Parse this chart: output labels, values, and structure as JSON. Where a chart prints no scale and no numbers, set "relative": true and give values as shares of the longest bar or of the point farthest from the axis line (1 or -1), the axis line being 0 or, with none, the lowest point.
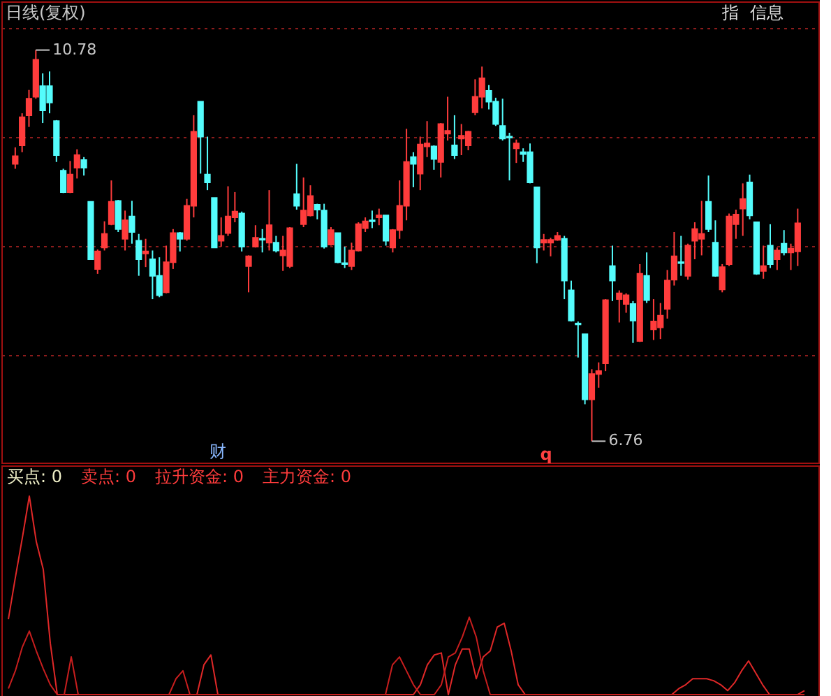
{
  "chart_data": [
    {
      "type": "candlestick",
      "title": "日线(复权)",
      "categories": [
        null,
        null,
        null,
        null,
        null,
        null,
        null,
        null,
        null,
        null,
        null,
        null,
        null,
        null,
        null,
        null,
        null,
        null,
        null,
        null,
        null,
        null,
        null,
        null,
        null,
        null,
        null,
        null,
        null,
        null,
        null,
        null,
        null,
        null,
        null,
        null,
        null,
        null,
        null,
        null,
        null,
        null,
        null,
        null,
        null,
        null,
        null,
        null,
        null,
        null,
        null,
        null,
        null,
        null,
        null,
        null,
        null,
        null,
        null,
        null,
        null,
        null,
        null,
        null,
        null,
        null,
        null,
        null,
        null,
        null,
        null,
        null,
        null,
        null,
        null,
        null,
        null,
        null,
        null,
        null,
        null,
        null,
        null,
        null,
        null,
        null,
        null,
        null,
        null,
        null,
        null,
        null,
        null,
        null,
        null,
        null,
        null,
        null,
        null,
        null,
        null,
        null,
        null,
        null,
        null,
        null,
        null,
        null,
        null,
        null,
        null,
        null,
        null,
        null,
        null
      ],
      "ohlc": [
        [
          9.61,
          9.78,
          9.56,
          9.69
        ],
        [
          9.8,
          10.13,
          9.73,
          10.09
        ],
        [
          10.11,
          10.37,
          9.99,
          10.28
        ],
        [
          10.3,
          10.78,
          10.28,
          10.68
        ],
        [
          10.41,
          10.54,
          10.03,
          10.16
        ],
        [
          10.41,
          10.56,
          10.13,
          10.24
        ],
        [
          10.05,
          10.06,
          9.63,
          9.7
        ],
        [
          9.54,
          9.56,
          9.31,
          9.32
        ],
        [
          9.32,
          9.64,
          9.31,
          9.5
        ],
        [
          9.57,
          9.76,
          9.46,
          9.7
        ],
        [
          9.65,
          9.68,
          9.49,
          9.57
        ],
        [
          9.22,
          9.22,
          8.63,
          8.63
        ],
        [
          8.53,
          8.73,
          8.48,
          8.71
        ],
        [
          8.75,
          9.02,
          8.72,
          8.89
        ],
        [
          8.99,
          9.44,
          8.98,
          9.22
        ],
        [
          9.23,
          9.24,
          8.91,
          8.94
        ],
        [
          8.84,
          9.13,
          8.72,
          9.03
        ],
        [
          9.07,
          9.23,
          8.79,
          8.91
        ],
        [
          8.82,
          8.89,
          8.46,
          8.63
        ],
        [
          8.69,
          8.84,
          8.55,
          8.71
        ],
        [
          8.63,
          8.72,
          8.22,
          8.46
        ],
        [
          8.46,
          8.65,
          8.24,
          8.26
        ],
        [
          8.29,
          8.77,
          8.28,
          8.6
        ],
        [
          8.6,
          8.94,
          8.53,
          8.9
        ],
        [
          8.9,
          8.91,
          8.71,
          8.84
        ],
        [
          8.84,
          9.25,
          8.82,
          9.18
        ],
        [
          9.18,
          10.11,
          9.06,
          9.94
        ],
        [
          10.25,
          10.25,
          9.51,
          9.89
        ],
        [
          9.5,
          9.89,
          9.34,
          9.42
        ],
        [
          9.26,
          9.26,
          8.75,
          8.75
        ],
        [
          8.82,
          9.06,
          8.76,
          8.87
        ],
        [
          8.9,
          9.38,
          8.87,
          9.07
        ],
        [
          9.06,
          9.32,
          9.01,
          9.12
        ],
        [
          9.1,
          9.12,
          8.71,
          8.76
        ],
        [
          8.56,
          8.67,
          8.29,
          8.66
        ],
        [
          8.76,
          8.98,
          8.75,
          8.85
        ],
        [
          8.84,
          8.94,
          8.7,
          8.83
        ],
        [
          8.8,
          9.34,
          8.72,
          8.98
        ],
        [
          8.8,
          8.87,
          8.7,
          8.72
        ],
        [
          8.67,
          8.87,
          8.51,
          8.72
        ],
        [
          8.56,
          8.96,
          8.54,
          8.95
        ],
        [
          9.3,
          9.61,
          9.14,
          9.18
        ],
        [
          8.99,
          9.47,
          8.96,
          9.13
        ],
        [
          9.08,
          9.39,
          9.07,
          9.28
        ],
        [
          9.19,
          9.2,
          9.04,
          9.14
        ],
        [
          9.13,
          9.2,
          8.74,
          8.76
        ],
        [
          8.78,
          8.96,
          8.77,
          8.93
        ],
        [
          8.9,
          8.9,
          8.59,
          8.6
        ],
        [
          8.59,
          8.76,
          8.54,
          8.58
        ],
        [
          8.56,
          8.8,
          8.52,
          8.72
        ],
        [
          8.72,
          9.01,
          8.71,
          8.99
        ],
        [
          8.95,
          9.06,
          8.91,
          9.02
        ],
        [
          9.03,
          9.13,
          8.95,
          9.02
        ],
        [
          9.06,
          9.15,
          8.98,
          9.08
        ],
        [
          9.08,
          9.08,
          8.77,
          8.82
        ],
        [
          8.75,
          8.94,
          8.7,
          8.93
        ],
        [
          8.93,
          9.44,
          8.84,
          9.18
        ],
        [
          9.18,
          9.97,
          9.03,
          9.63
        ],
        [
          9.68,
          9.73,
          9.37,
          9.61
        ],
        [
          9.51,
          9.89,
          9.34,
          9.81
        ],
        [
          9.79,
          10.05,
          9.68,
          9.82
        ],
        [
          9.79,
          9.8,
          9.55,
          9.66
        ],
        [
          9.63,
          10.03,
          9.47,
          10.02
        ],
        [
          9.92,
          10.3,
          9.85,
          9.95
        ],
        [
          9.8,
          10.11,
          9.66,
          9.7
        ],
        [
          9.87,
          10.02,
          9.7,
          9.9
        ],
        [
          9.8,
          9.95,
          9.75,
          9.94
        ],
        [
          10.14,
          10.48,
          10.11,
          10.3
        ],
        [
          10.3,
          10.61,
          10.18,
          10.49
        ],
        [
          10.36,
          10.42,
          10.17,
          10.25
        ],
        [
          10.25,
          10.29,
          10.0,
          10.02
        ],
        [
          10.0,
          10.28,
          9.85,
          9.87
        ],
        [
          9.89,
          9.93,
          9.44,
          9.88
        ],
        [
          9.77,
          9.86,
          9.62,
          9.82
        ],
        [
          9.73,
          9.77,
          9.63,
          9.71
        ],
        [
          9.73,
          9.82,
          9.41,
          9.42
        ],
        [
          9.37,
          9.37,
          8.59,
          8.75
        ],
        [
          8.8,
          8.89,
          8.72,
          8.83
        ],
        [
          8.8,
          8.85,
          8.66,
          8.83
        ],
        [
          8.83,
          8.91,
          8.82,
          8.87
        ],
        [
          8.84,
          8.87,
          8.22,
          8.41
        ],
        [
          8.31,
          8.41,
          7.99,
          8.0
        ],
        [
          7.97,
          7.99,
          7.62,
          7.96
        ],
        [
          7.86,
          7.86,
          7.14,
          7.19
        ],
        [
          7.19,
          7.5,
          6.76,
          7.45
        ],
        [
          7.45,
          7.57,
          7.31,
          7.48
        ],
        [
          7.56,
          8.22,
          7.48,
          8.21
        ],
        [
          8.56,
          8.77,
          8.2,
          8.41
        ],
        [
          8.22,
          8.31,
          7.98,
          8.28
        ],
        [
          8.17,
          8.28,
          8.08,
          8.26
        ],
        [
          8.17,
          8.2,
          7.77,
          8.0
        ],
        [
          7.79,
          8.58,
          7.78,
          8.48
        ],
        [
          8.46,
          8.7,
          8.18,
          8.21
        ],
        [
          7.91,
          8.22,
          7.8,
          7.99
        ],
        [
          7.93,
          8.18,
          7.81,
          8.05
        ],
        [
          8.12,
          8.52,
          8.02,
          8.41
        ],
        [
          8.42,
          8.91,
          8.36,
          8.66
        ],
        [
          8.6,
          8.87,
          8.46,
          8.59
        ],
        [
          8.46,
          8.79,
          8.42,
          8.77
        ],
        [
          8.82,
          9.01,
          8.63,
          8.94
        ],
        [
          8.84,
          9.23,
          8.67,
          8.89
        ],
        [
          9.22,
          9.49,
          8.91,
          8.94
        ],
        [
          8.8,
          9.03,
          8.45,
          8.46
        ],
        [
          8.32,
          8.58,
          8.29,
          8.55
        ],
        [
          8.58,
          9.1,
          8.56,
          9.07
        ],
        [
          8.99,
          9.14,
          8.84,
          9.09
        ],
        [
          9.15,
          9.41,
          8.87,
          9.25
        ],
        [
          9.42,
          9.5,
          9.04,
          9.08
        ],
        [
          9.01,
          9.01,
          8.47,
          8.48
        ],
        [
          8.51,
          8.77,
          8.43,
          8.56
        ],
        [
          8.77,
          8.99,
          8.54,
          8.58
        ],
        [
          8.63,
          8.75,
          8.52,
          8.72
        ],
        [
          8.79,
          8.93,
          8.67,
          8.7
        ],
        [
          8.7,
          8.79,
          8.52,
          8.74
        ],
        [
          8.71,
          9.15,
          8.56,
          9.0
        ]
      ],
      "colors": [
        "#ff3c3c",
        "#ff3c3c",
        "#ff3c3c",
        "#ff3c3c",
        "#54fcfc",
        "#54fcfc",
        "#54fcfc",
        "#54fcfc",
        "#ff3c3c",
        "#ff3c3c",
        "#54fcfc",
        "#54fcfc",
        "#ff3c3c",
        "#ff3c3c",
        "#ff3c3c",
        "#54fcfc",
        "#ff3c3c",
        "#54fcfc",
        "#54fcfc",
        "#ff3c3c",
        "#54fcfc",
        "#54fcfc",
        "#ff3c3c",
        "#ff3c3c",
        "#54fcfc",
        "#ff3c3c",
        "#ff3c3c",
        "#54fcfc",
        "#54fcfc",
        "#54fcfc",
        "#ff3c3c",
        "#ff3c3c",
        "#ff3c3c",
        "#54fcfc",
        "#ff3c3c",
        "#ff3c3c",
        "#54fcfc",
        "#ff3c3c",
        "#54fcfc",
        "#ff3c3c",
        "#ff3c3c",
        "#54fcfc",
        "#ff3c3c",
        "#ff3c3c",
        "#54fcfc",
        "#54fcfc",
        "#ff3c3c",
        "#54fcfc",
        "#54fcfc",
        "#ff3c3c",
        "#ff3c3c",
        "#ff3c3c",
        "#54fcfc",
        "#ff3c3c",
        "#54fcfc",
        "#ff3c3c",
        "#ff3c3c",
        "#ff3c3c",
        "#54fcfc",
        "#ff3c3c",
        "#ff3c3c",
        "#54fcfc",
        "#ff3c3c",
        "#ff3c3c",
        "#54fcfc",
        "#ff3c3c",
        "#ff3c3c",
        "#ff3c3c",
        "#ff3c3c",
        "#54fcfc",
        "#54fcfc",
        "#54fcfc",
        "#54fcfc",
        "#ff3c3c",
        "#54fcfc",
        "#54fcfc",
        "#54fcfc",
        "#ff3c3c",
        "#ff3c3c",
        "#ff3c3c",
        "#54fcfc",
        "#54fcfc",
        "#54fcfc",
        "#54fcfc",
        "#ff3c3c",
        "#ff3c3c",
        "#ff3c3c",
        "#54fcfc",
        "#ff3c3c",
        "#ff3c3c",
        "#54fcfc",
        "#ff3c3c",
        "#54fcfc",
        "#ff3c3c",
        "#ff3c3c",
        "#ff3c3c",
        "#ff3c3c",
        "#54fcfc",
        "#ff3c3c",
        "#ff3c3c",
        "#ff3c3c",
        "#54fcfc",
        "#54fcfc",
        "#ff3c3c",
        "#ff3c3c",
        "#ff3c3c",
        "#ff3c3c",
        "#54fcfc",
        "#54fcfc",
        "#ff3c3c",
        "#54fcfc",
        "#ff3c3c",
        "#54fcfc",
        "#ff3c3c",
        "#ff3c3c"
      ],
      "ylim": [
        6.54,
        11.28
      ],
      "yticks": [
        {
          "value": 7.65,
          "label": null
        },
        {
          "value": 8.77,
          "label": null
        },
        {
          "value": 9.89,
          "label": null
        },
        {
          "value": 11.01,
          "label": null
        }
      ],
      "grid": "y",
      "annotations": [
        "10.78",
        "6.76",
        "财",
        "q",
        "指",
        "信息"
      ]
    },
    {
      "type": "line",
      "relative": true,
      "categories": [
        null,
        null,
        null,
        null,
        null,
        null,
        null,
        null,
        null,
        null,
        null,
        null,
        null,
        null,
        null,
        null,
        null,
        null,
        null,
        null,
        null,
        null,
        null,
        null,
        null,
        null,
        null,
        null,
        null,
        null,
        null,
        null,
        null,
        null,
        null,
        null,
        null,
        null,
        null,
        null,
        null,
        null,
        null,
        null,
        null,
        null,
        null,
        null,
        null,
        null,
        null,
        null,
        null,
        null,
        null,
        null,
        null,
        null,
        null,
        null,
        null,
        null,
        null,
        null,
        null,
        null,
        null,
        null,
        null,
        null,
        null,
        null,
        null,
        null,
        null,
        null,
        null,
        null,
        null,
        null,
        null,
        null,
        null,
        null,
        null,
        null,
        null,
        null,
        null,
        null,
        null,
        null,
        null,
        null,
        null,
        null,
        null,
        null,
        null,
        null,
        null,
        null,
        null,
        null,
        null,
        null,
        null,
        null,
        null,
        null,
        null,
        null,
        null,
        null,
        null
      ],
      "annotations": [
        "买点: 0",
        "卖点: 0",
        "拉升资金: 0",
        "主力资金: 0"
      ],
      "series": [
        {
          "color": "#e02828",
          "values": [
            0.38,
            0.59,
            0.79,
            1,
            0.77,
            0.63,
            0.26,
            0,
            0,
            0,
            0,
            0,
            0,
            0,
            0,
            0,
            0,
            0,
            0,
            0,
            0,
            0,
            0,
            0,
            0,
            0,
            0,
            0,
            0.15,
            0.2,
            0,
            0,
            0,
            0,
            0,
            0,
            0,
            0,
            0,
            0,
            0,
            0,
            0,
            0,
            0,
            0,
            0,
            0,
            0,
            0,
            0,
            0,
            0,
            0,
            0,
            0,
            0,
            0,
            0,
            0.05,
            0.15,
            0.2,
            0.21,
            0,
            0.15,
            0.23,
            0.23,
            0.08,
            0.19,
            0.22,
            0.34,
            0.36,
            0.22,
            0.05,
            0,
            0,
            0,
            0,
            0,
            0,
            0,
            0,
            0,
            0,
            0,
            0,
            0,
            0,
            0,
            0,
            0,
            0,
            0,
            0,
            0,
            0,
            0.03,
            0.05,
            0.08,
            0.08,
            0.08,
            0.07,
            0.05,
            0.02,
            0.06,
            0.12,
            0.17,
            0.11,
            0.05,
            0,
            0,
            0,
            0,
            0,
            0.02
          ]
        },
        {
          "color": "#c81e1e",
          "values": [
            0.03,
            0.12,
            0.24,
            0.32,
            0.22,
            0.13,
            0.05,
            0,
            0,
            0.19,
            0,
            0,
            0,
            0,
            0,
            0,
            0,
            0,
            0,
            0,
            0,
            0,
            0,
            0,
            0.08,
            0.12,
            0,
            0,
            0,
            0,
            0,
            0,
            0,
            0,
            0,
            0,
            0,
            0,
            0,
            0,
            0,
            0,
            0,
            0,
            0,
            0,
            0,
            0,
            0,
            0,
            0,
            0,
            0,
            0,
            0,
            0.15,
            0.19,
            0.12,
            0.05,
            0,
            0,
            0,
            0.05,
            0.19,
            0.21,
            0.29,
            0.39,
            0.29,
            0.12,
            0,
            0,
            0,
            0,
            0,
            0,
            0,
            0,
            0,
            0,
            0,
            0,
            0,
            0,
            0,
            0,
            0,
            0,
            0,
            0,
            0,
            0,
            0,
            0,
            0,
            0,
            0,
            0,
            0,
            0,
            0,
            0,
            0,
            0,
            0,
            0,
            0,
            0,
            0,
            0,
            0,
            0,
            0,
            0,
            0,
            0
          ]
        }
      ]
    }
  ]
}
